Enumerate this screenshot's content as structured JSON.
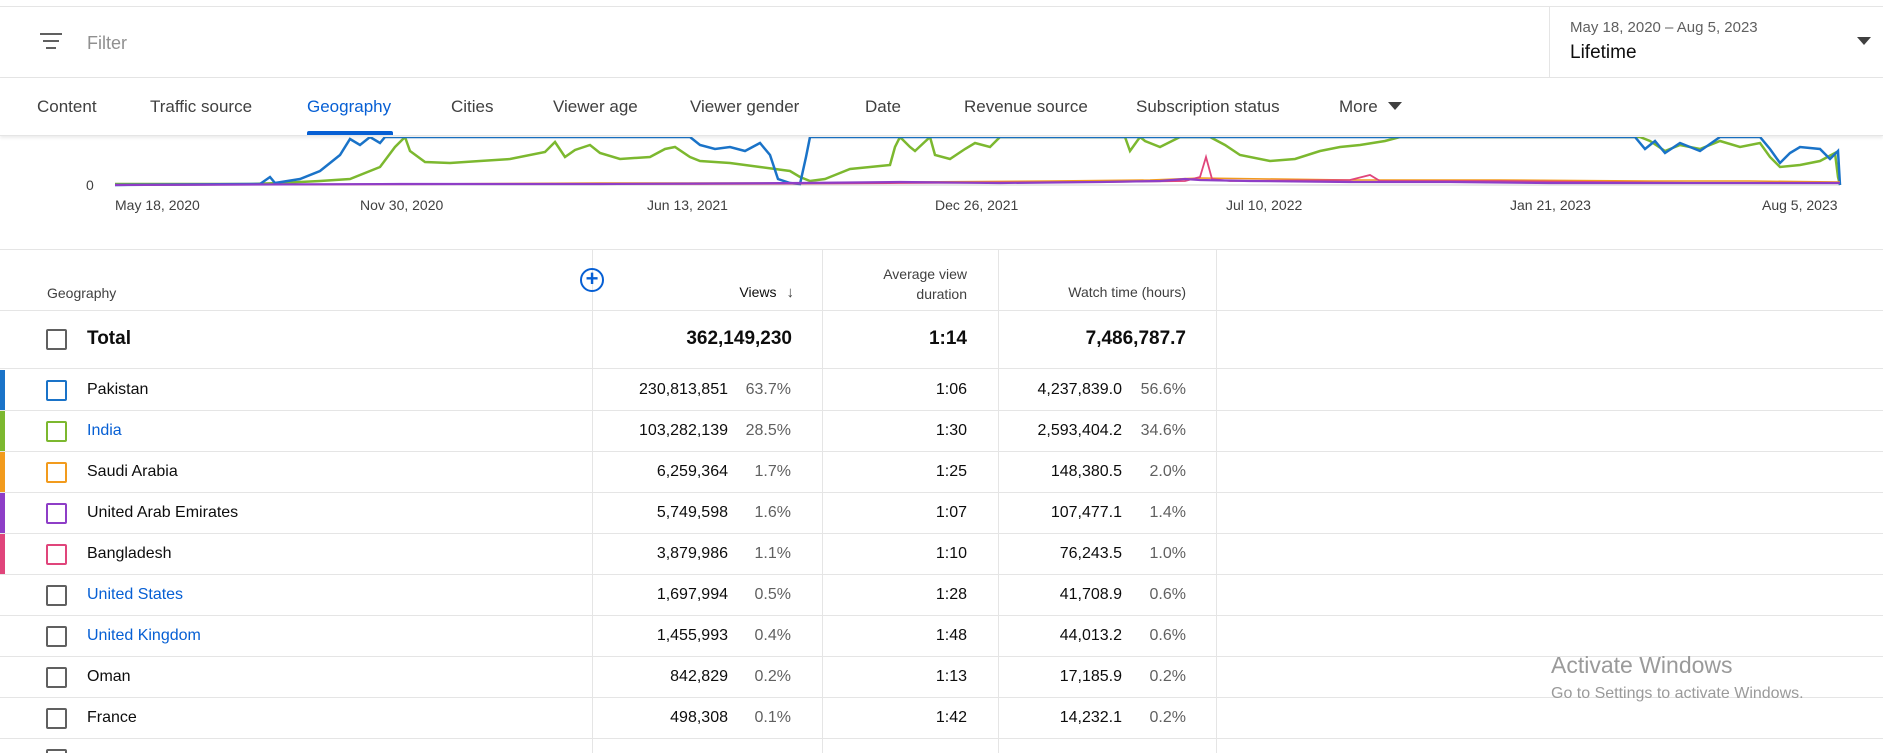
{
  "filter": {
    "placeholder": "Filter",
    "icon": "filter-icon"
  },
  "date": {
    "range": "May 18, 2020 – Aug 5, 2023",
    "period": "Lifetime"
  },
  "tabs": [
    {
      "label": "Content"
    },
    {
      "label": "Traffic source"
    },
    {
      "label": "Geography",
      "active": true
    },
    {
      "label": "Cities"
    },
    {
      "label": "Viewer age"
    },
    {
      "label": "Viewer gender"
    },
    {
      "label": "Date"
    },
    {
      "label": "Revenue source"
    },
    {
      "label": "Subscription status"
    },
    {
      "label": "More"
    }
  ],
  "chart": {
    "y_tick": "0",
    "x_ticks": [
      "May 18, 2020",
      "Nov 30, 2020",
      "Jun 13, 2021",
      "Dec 26, 2021",
      "Jul 10, 2022",
      "Jan 21, 2023",
      "Aug 5, 2023"
    ],
    "series_colors": {
      "Pakistan": "#1a73c8",
      "India": "#7cb82f",
      "Saudi Arabia": "#f29b1d",
      "United Arab Emirates": "#8e3ec7",
      "Bangladesh": "#e0457b"
    }
  },
  "table": {
    "headers": {
      "geography": "Geography",
      "views": "Views",
      "avd_line1": "Average view",
      "avd_line2": "duration",
      "watch": "Watch time (hours)"
    },
    "total": {
      "label": "Total",
      "views": "362,149,230",
      "avd": "1:14",
      "watch": "7,486,787.7"
    },
    "rows": [
      {
        "name": "Pakistan",
        "views": "230,813,851",
        "views_pct": "63.7%",
        "avd": "1:06",
        "watch": "4,237,839.0",
        "watch_pct": "56.6%",
        "color": "#1a73c8",
        "link": false
      },
      {
        "name": "India",
        "views": "103,282,139",
        "views_pct": "28.5%",
        "avd": "1:30",
        "watch": "2,593,404.2",
        "watch_pct": "34.6%",
        "color": "#7cb82f",
        "link": true
      },
      {
        "name": "Saudi Arabia",
        "views": "6,259,364",
        "views_pct": "1.7%",
        "avd": "1:25",
        "watch": "148,380.5",
        "watch_pct": "2.0%",
        "color": "#f29b1d",
        "link": false
      },
      {
        "name": "United Arab Emirates",
        "views": "5,749,598",
        "views_pct": "1.6%",
        "avd": "1:07",
        "watch": "107,477.1",
        "watch_pct": "1.4%",
        "color": "#8e3ec7",
        "link": false
      },
      {
        "name": "Bangladesh",
        "views": "3,879,986",
        "views_pct": "1.1%",
        "avd": "1:10",
        "watch": "76,243.5",
        "watch_pct": "1.0%",
        "color": "#e0457b",
        "link": false
      },
      {
        "name": "United States",
        "views": "1,697,994",
        "views_pct": "0.5%",
        "avd": "1:28",
        "watch": "41,708.9",
        "watch_pct": "0.6%",
        "color": "",
        "link": true
      },
      {
        "name": "United Kingdom",
        "views": "1,455,993",
        "views_pct": "0.4%",
        "avd": "1:48",
        "watch": "44,013.2",
        "watch_pct": "0.6%",
        "color": "",
        "link": true
      },
      {
        "name": "Oman",
        "views": "842,829",
        "views_pct": "0.2%",
        "avd": "1:13",
        "watch": "17,185.9",
        "watch_pct": "0.2%",
        "color": "",
        "link": false
      },
      {
        "name": "France",
        "views": "498,308",
        "views_pct": "0.1%",
        "avd": "1:42",
        "watch": "14,232.1",
        "watch_pct": "0.2%",
        "color": "",
        "link": false
      }
    ]
  },
  "watermark": {
    "title": "Activate Windows",
    "subtitle": "Go to Settings to activate Windows."
  }
}
